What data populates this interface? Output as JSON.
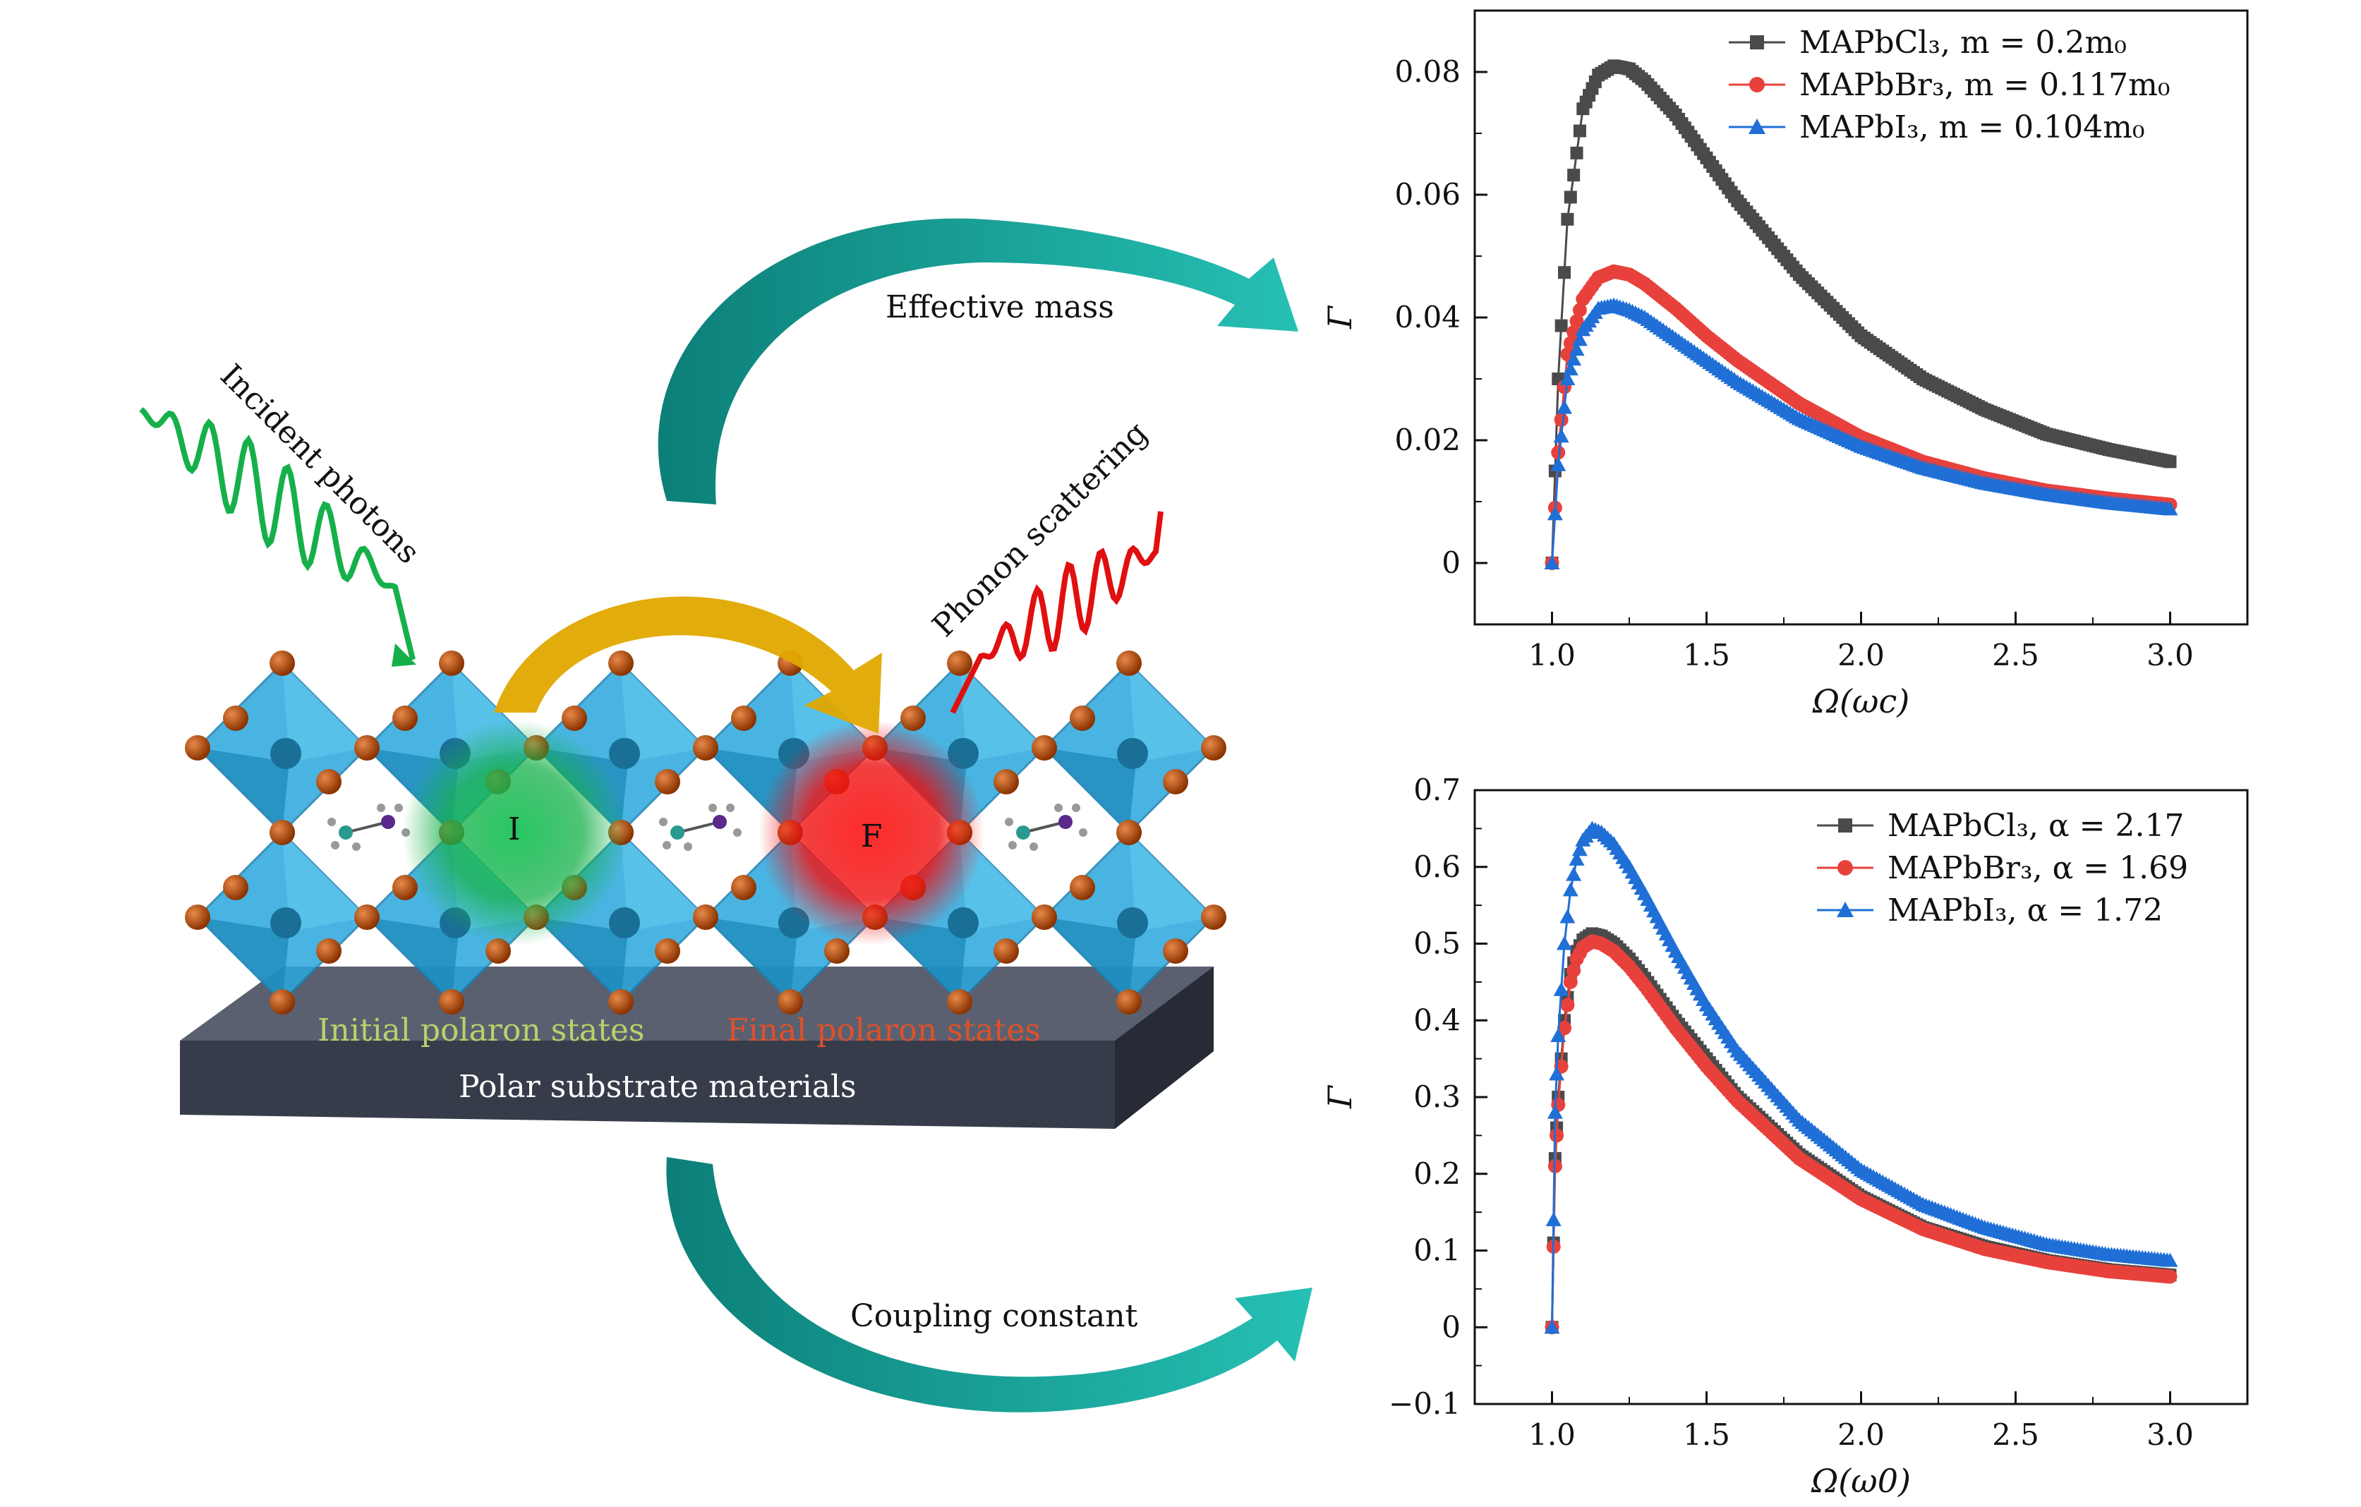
{
  "illustration": {
    "arrow_top_label": "Effective mass",
    "arrow_bottom_label": "Coupling constant",
    "incident_label": "Incident photons",
    "phonon_label": "Phonon scattering",
    "initial_state_letter": "I",
    "final_state_letter": "F",
    "initial_states_label": "Initial polaron states",
    "final_states_label": "Final polaron states",
    "substrate_label": "Polar substrate materials",
    "colors": {
      "teal": "#1aa89b",
      "gold": "#e0a800",
      "octahedron": "#2aa8dd",
      "atom": "#b34a00",
      "substrate": "#3b4150",
      "green_glow": "#16b04a",
      "red_glow": "#ef1010"
    }
  },
  "chart_data": [
    {
      "type": "line",
      "xlabel": "Ω(ωc)",
      "ylabel": "Γ",
      "xlim": [
        0.75,
        3.25
      ],
      "ylim": [
        -0.01,
        0.09
      ],
      "xticks": [
        1.0,
        1.5,
        2.0,
        2.5,
        3.0
      ],
      "xtick_labels": [
        "1.0",
        "1.5",
        "2.0",
        "2.5",
        "3.0"
      ],
      "yticks": [
        0,
        0.02,
        0.04,
        0.06,
        0.08
      ],
      "ytick_labels": [
        "0",
        "0.02",
        "0.04",
        "0.06",
        "0.08"
      ],
      "legend_position": "top-right",
      "grid": false,
      "series": [
        {
          "name": "MAPbCl3, m = 0.2m0",
          "legend": "MAPbCl₃, m = 0.2m₀",
          "color": "#4a4a4a",
          "marker": "square",
          "x": [
            1.0,
            1.02,
            1.05,
            1.1,
            1.15,
            1.2,
            1.25,
            1.3,
            1.4,
            1.5,
            1.6,
            1.8,
            2.0,
            2.2,
            2.4,
            2.6,
            2.8,
            3.0
          ],
          "y": [
            0,
            0.03,
            0.056,
            0.074,
            0.0795,
            0.081,
            0.0805,
            0.0785,
            0.073,
            0.066,
            0.059,
            0.047,
            0.037,
            0.03,
            0.025,
            0.021,
            0.0185,
            0.0165
          ]
        },
        {
          "name": "MAPbBr3, m = 0.117m0",
          "legend": "MAPbBr₃, m = 0.117m₀",
          "color": "#e8413c",
          "marker": "circle",
          "x": [
            1.0,
            1.02,
            1.05,
            1.1,
            1.15,
            1.2,
            1.25,
            1.3,
            1.4,
            1.5,
            1.6,
            1.8,
            2.0,
            2.2,
            2.4,
            2.6,
            2.8,
            3.0
          ],
          "y": [
            0,
            0.018,
            0.034,
            0.043,
            0.0465,
            0.0475,
            0.047,
            0.0455,
            0.0415,
            0.037,
            0.033,
            0.026,
            0.0205,
            0.0165,
            0.0138,
            0.0118,
            0.0105,
            0.0095
          ]
        },
        {
          "name": "MAPbI3, m = 0.104m0",
          "legend": "MAPbI₃, m = 0.104m₀",
          "color": "#1f6fd6",
          "marker": "triangle",
          "x": [
            1.0,
            1.02,
            1.05,
            1.1,
            1.15,
            1.2,
            1.25,
            1.3,
            1.4,
            1.5,
            1.6,
            1.8,
            2.0,
            2.2,
            2.4,
            2.6,
            2.8,
            3.0
          ],
          "y": [
            0,
            0.016,
            0.03,
            0.038,
            0.0415,
            0.042,
            0.0412,
            0.04,
            0.0365,
            0.033,
            0.0295,
            0.0235,
            0.019,
            0.0155,
            0.013,
            0.0112,
            0.0098,
            0.0088
          ]
        }
      ]
    },
    {
      "type": "line",
      "xlabel": "Ω(ω0)",
      "ylabel": "Γ",
      "xlim": [
        0.75,
        3.25
      ],
      "ylim": [
        -0.1,
        0.7
      ],
      "xticks": [
        1.0,
        1.5,
        2.0,
        2.5,
        3.0
      ],
      "xtick_labels": [
        "1.0",
        "1.5",
        "2.0",
        "2.5",
        "3.0"
      ],
      "yticks": [
        -0.1,
        0,
        0.1,
        0.2,
        0.3,
        0.4,
        0.5,
        0.6,
        0.7
      ],
      "ytick_labels": [
        "−0.1",
        "0",
        "0.1",
        "0.2",
        "0.3",
        "0.4",
        "0.5",
        "0.6",
        "0.7"
      ],
      "legend_position": "top-right",
      "grid": false,
      "series": [
        {
          "name": "MAPbCl3, α = 2.17",
          "legend": "MAPbCl₃, α = 2.17",
          "color": "#4a4a4a",
          "marker": "square",
          "x": [
            1.0,
            1.01,
            1.02,
            1.04,
            1.06,
            1.08,
            1.1,
            1.13,
            1.16,
            1.2,
            1.25,
            1.3,
            1.4,
            1.5,
            1.6,
            1.8,
            2.0,
            2.2,
            2.4,
            2.6,
            2.8,
            3.0
          ],
          "y": [
            0,
            0.22,
            0.3,
            0.4,
            0.46,
            0.49,
            0.505,
            0.513,
            0.51,
            0.5,
            0.48,
            0.455,
            0.4,
            0.35,
            0.3,
            0.225,
            0.17,
            0.13,
            0.105,
            0.087,
            0.075,
            0.068
          ]
        },
        {
          "name": "MAPbBr3, α = 1.69",
          "legend": "MAPbBr₃, α = 1.69",
          "color": "#e8413c",
          "marker": "circle",
          "x": [
            1.0,
            1.01,
            1.02,
            1.04,
            1.06,
            1.08,
            1.1,
            1.13,
            1.16,
            1.2,
            1.25,
            1.3,
            1.4,
            1.5,
            1.6,
            1.8,
            2.0,
            2.2,
            2.4,
            2.6,
            2.8,
            3.0
          ],
          "y": [
            0,
            0.21,
            0.29,
            0.39,
            0.45,
            0.48,
            0.495,
            0.503,
            0.5,
            0.49,
            0.47,
            0.445,
            0.39,
            0.34,
            0.295,
            0.22,
            0.167,
            0.128,
            0.102,
            0.085,
            0.073,
            0.066
          ]
        },
        {
          "name": "MAPbI3, α = 1.72",
          "legend": "MAPbI₃, α = 1.72",
          "color": "#1f6fd6",
          "marker": "triangle",
          "x": [
            1.0,
            1.01,
            1.02,
            1.04,
            1.06,
            1.08,
            1.1,
            1.13,
            1.16,
            1.2,
            1.25,
            1.3,
            1.4,
            1.5,
            1.6,
            1.8,
            2.0,
            2.2,
            2.4,
            2.6,
            2.8,
            3.0
          ],
          "y": [
            0,
            0.28,
            0.38,
            0.5,
            0.57,
            0.61,
            0.635,
            0.65,
            0.645,
            0.63,
            0.6,
            0.565,
            0.49,
            0.42,
            0.36,
            0.27,
            0.205,
            0.16,
            0.13,
            0.108,
            0.095,
            0.087
          ]
        }
      ]
    }
  ]
}
